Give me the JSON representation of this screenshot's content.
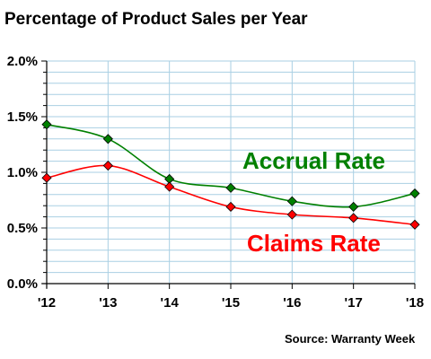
{
  "chart_data": {
    "type": "line",
    "title": "Percentage of Product Sales per Year",
    "categories": [
      "'12",
      "'13",
      "'14",
      "'15",
      "'16",
      "'17",
      "'18"
    ],
    "y_ticks": [
      "0.0%",
      "0.5%",
      "1.0%",
      "1.5%",
      "2.0%"
    ],
    "ylim": [
      0,
      2.0
    ],
    "y_minor_step": 0.1,
    "grid": true,
    "series": [
      {
        "name": "Accrual Rate",
        "color": "#008000",
        "marker": "diamond",
        "label_position": "middle-right",
        "values": [
          1.43,
          1.3,
          0.94,
          0.86,
          0.74,
          0.69,
          0.81
        ]
      },
      {
        "name": "Claims Rate",
        "color": "#ff0000",
        "marker": "diamond",
        "label_position": "lower-right",
        "values": [
          0.95,
          1.06,
          0.87,
          0.69,
          0.62,
          0.59,
          0.53
        ]
      }
    ],
    "source": "Source: Warranty Week"
  }
}
